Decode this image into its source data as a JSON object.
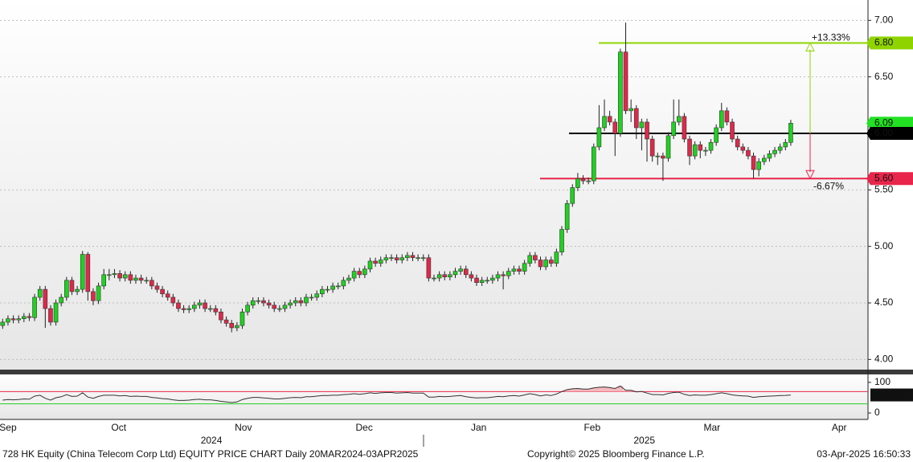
{
  "chart_data": {
    "type": "candlestick",
    "footer_left": "728 HK Equity (China Telecom Corp Ltd) EQUITY PRICE CHART  Daily 20MAR2024-03APR2025",
    "footer_center": "Copyright© 2025 Bloomberg Finance L.P.",
    "footer_right": "03-Apr-2025 16:50:33",
    "up_color": "#1fd21f",
    "down_color": "#e0284a",
    "x": [
      0,
      1,
      2,
      3,
      4,
      5,
      6,
      7,
      8,
      9,
      10,
      11,
      12,
      13,
      14,
      15,
      16,
      17,
      18,
      19,
      20,
      21,
      22,
      23,
      24,
      25,
      26,
      27,
      28,
      29,
      30,
      31,
      32,
      33,
      34,
      35,
      36,
      37,
      38,
      39,
      40,
      41,
      42,
      43,
      44,
      45,
      46,
      47,
      48,
      49,
      50,
      51,
      52,
      53,
      54,
      55,
      56,
      57,
      58,
      59,
      60,
      61,
      62,
      63,
      64,
      65,
      66,
      67,
      68,
      69,
      70,
      71,
      72,
      73,
      74,
      75,
      76,
      77,
      78,
      79,
      80,
      81,
      82,
      83,
      84,
      85,
      86,
      87,
      88,
      89,
      90,
      91,
      92,
      93,
      94,
      95,
      96,
      97,
      98,
      99,
      100,
      101,
      102,
      103,
      104,
      105,
      106,
      107,
      108,
      109,
      110,
      111,
      112,
      113,
      114,
      115,
      116,
      117,
      118,
      119,
      120,
      121,
      122,
      123,
      124,
      125,
      126,
      127,
      128,
      129,
      130,
      131,
      132,
      133,
      134,
      135,
      136,
      137,
      138,
      139,
      140,
      141,
      142,
      143,
      144,
      145,
      146,
      147,
      148
    ],
    "open": [
      4.3,
      4.33,
      4.36,
      4.35,
      4.36,
      4.38,
      4.37,
      4.55,
      4.62,
      4.45,
      4.33,
      4.5,
      4.55,
      4.7,
      4.6,
      4.62,
      4.93,
      4.6,
      4.52,
      4.65,
      4.75,
      4.75,
      4.76,
      4.72,
      4.75,
      4.7,
      4.72,
      4.7,
      4.7,
      4.65,
      4.62,
      4.58,
      4.55,
      4.5,
      4.45,
      4.44,
      4.45,
      4.48,
      4.5,
      4.45,
      4.45,
      4.42,
      4.35,
      4.32,
      4.28,
      4.3,
      4.42,
      4.48,
      4.52,
      4.52,
      4.5,
      4.48,
      4.45,
      4.45,
      4.48,
      4.5,
      4.52,
      4.5,
      4.55,
      4.55,
      4.58,
      4.62,
      4.62,
      4.65,
      4.65,
      4.7,
      4.72,
      4.78,
      4.75,
      4.8,
      4.87,
      4.85,
      4.88,
      4.9,
      4.9,
      4.88,
      4.9,
      4.92,
      4.9,
      4.9,
      4.9,
      4.72,
      4.72,
      4.75,
      4.73,
      4.75,
      4.78,
      4.8,
      4.75,
      4.72,
      4.68,
      4.7,
      4.7,
      4.72,
      4.75,
      4.74,
      4.78,
      4.8,
      4.78,
      4.85,
      4.92,
      4.88,
      4.82,
      4.88,
      4.85,
      4.95,
      5.15,
      5.38,
      5.52,
      5.6,
      5.58,
      5.58,
      5.88,
      6.05,
      6.15,
      6.1,
      6.0,
      6.72,
      6.2,
      6.22,
      6.05,
      6.1,
      5.95,
      5.8,
      5.8,
      5.78,
      5.98,
      6.1,
      6.15,
      5.95,
      5.8,
      5.9,
      5.85,
      5.85,
      5.92,
      6.05,
      6.2,
      6.1,
      5.95,
      5.88,
      5.85,
      5.8,
      5.68,
      5.75,
      5.78,
      5.82,
      5.85,
      5.88,
      5.92
    ],
    "high": [
      4.36,
      4.39,
      4.39,
      4.39,
      4.41,
      4.41,
      4.58,
      4.65,
      4.65,
      4.48,
      4.53,
      4.58,
      4.73,
      4.73,
      4.65,
      4.96,
      4.95,
      4.63,
      4.68,
      4.8,
      4.8,
      4.8,
      4.79,
      4.78,
      4.78,
      4.75,
      4.75,
      4.73,
      4.73,
      4.68,
      4.65,
      4.61,
      4.58,
      4.53,
      4.48,
      4.48,
      4.51,
      4.53,
      4.53,
      4.48,
      4.48,
      4.45,
      4.38,
      4.35,
      4.33,
      4.45,
      4.51,
      4.55,
      4.55,
      4.55,
      4.53,
      4.51,
      4.48,
      4.51,
      4.53,
      4.55,
      4.55,
      4.58,
      4.58,
      4.61,
      4.65,
      4.65,
      4.68,
      4.68,
      4.73,
      4.75,
      4.81,
      4.81,
      4.83,
      4.9,
      4.9,
      4.91,
      4.93,
      4.93,
      4.93,
      4.93,
      4.95,
      4.95,
      4.93,
      4.93,
      4.93,
      4.75,
      4.78,
      4.78,
      4.78,
      4.81,
      4.83,
      4.83,
      4.78,
      4.75,
      4.73,
      4.73,
      4.75,
      4.78,
      4.78,
      4.81,
      4.83,
      4.83,
      4.88,
      4.95,
      4.95,
      4.91,
      4.91,
      4.91,
      4.98,
      5.18,
      5.41,
      5.55,
      5.65,
      5.63,
      5.61,
      5.91,
      6.25,
      6.3,
      6.2,
      6.13,
      6.75,
      6.98,
      6.3,
      6.25,
      6.13,
      6.13,
      5.98,
      5.83,
      5.83,
      6.01,
      6.3,
      6.3,
      6.18,
      5.98,
      5.93,
      5.93,
      5.88,
      5.95,
      6.08,
      6.27,
      6.23,
      6.13,
      5.98,
      5.91,
      5.88,
      5.83,
      5.78,
      5.81,
      5.85,
      5.88,
      5.91,
      5.95,
      6.12
    ],
    "low": [
      4.27,
      4.3,
      4.32,
      4.32,
      4.33,
      4.34,
      4.34,
      4.52,
      4.28,
      4.3,
      4.3,
      4.47,
      4.52,
      4.57,
      4.57,
      4.59,
      4.52,
      4.48,
      4.49,
      4.62,
      4.7,
      4.72,
      4.69,
      4.69,
      4.67,
      4.67,
      4.67,
      4.67,
      4.62,
      4.59,
      4.55,
      4.52,
      4.47,
      4.42,
      4.41,
      4.41,
      4.42,
      4.45,
      4.42,
      4.42,
      4.39,
      4.32,
      4.29,
      4.24,
      4.25,
      4.27,
      4.39,
      4.45,
      4.49,
      4.47,
      4.45,
      4.42,
      4.42,
      4.42,
      4.45,
      4.47,
      4.47,
      4.47,
      4.52,
      4.52,
      4.55,
      4.59,
      4.59,
      4.62,
      4.62,
      4.67,
      4.69,
      4.72,
      4.72,
      4.77,
      4.82,
      4.82,
      4.85,
      4.87,
      4.85,
      4.85,
      4.87,
      4.87,
      4.87,
      4.87,
      4.69,
      4.69,
      4.69,
      4.7,
      4.7,
      4.72,
      4.75,
      4.72,
      4.69,
      4.65,
      4.65,
      4.67,
      4.67,
      4.69,
      4.62,
      4.71,
      4.75,
      4.75,
      4.75,
      4.82,
      4.85,
      4.79,
      4.79,
      4.82,
      4.82,
      4.92,
      5.12,
      5.35,
      5.49,
      5.55,
      5.55,
      5.55,
      5.85,
      6.02,
      6.07,
      5.8,
      5.97,
      6.17,
      6.1,
      5.95,
      5.85,
      5.75,
      5.75,
      5.72,
      5.58,
      5.75,
      5.95,
      6.07,
      5.92,
      5.72,
      5.77,
      5.78,
      5.8,
      5.82,
      5.89,
      6.02,
      6.07,
      5.92,
      5.85,
      5.82,
      5.77,
      5.6,
      5.62,
      5.72,
      5.75,
      5.79,
      5.82,
      5.85,
      5.89
    ],
    "close": [
      4.33,
      4.36,
      4.35,
      4.36,
      4.38,
      4.37,
      4.55,
      4.62,
      4.45,
      4.33,
      4.5,
      4.55,
      4.7,
      4.6,
      4.62,
      4.93,
      4.6,
      4.52,
      4.65,
      4.75,
      4.75,
      4.76,
      4.72,
      4.75,
      4.7,
      4.72,
      4.7,
      4.7,
      4.65,
      4.62,
      4.58,
      4.55,
      4.5,
      4.45,
      4.44,
      4.45,
      4.48,
      4.5,
      4.45,
      4.45,
      4.42,
      4.35,
      4.32,
      4.28,
      4.3,
      4.42,
      4.48,
      4.52,
      4.52,
      4.5,
      4.48,
      4.45,
      4.45,
      4.48,
      4.5,
      4.52,
      4.5,
      4.55,
      4.55,
      4.58,
      4.62,
      4.62,
      4.65,
      4.65,
      4.7,
      4.72,
      4.78,
      4.75,
      4.8,
      4.87,
      4.85,
      4.88,
      4.9,
      4.9,
      4.88,
      4.9,
      4.92,
      4.9,
      4.9,
      4.9,
      4.72,
      4.72,
      4.75,
      4.73,
      4.75,
      4.78,
      4.8,
      4.75,
      4.72,
      4.68,
      4.7,
      4.7,
      4.72,
      4.75,
      4.74,
      4.78,
      4.8,
      4.78,
      4.85,
      4.92,
      4.88,
      4.82,
      4.88,
      4.85,
      4.95,
      5.15,
      5.38,
      5.52,
      5.6,
      5.58,
      5.58,
      5.88,
      6.05,
      6.15,
      6.1,
      6.0,
      6.72,
      6.2,
      6.22,
      6.05,
      6.1,
      5.95,
      5.8,
      5.8,
      5.78,
      5.98,
      6.1,
      6.15,
      5.95,
      5.8,
      5.9,
      5.85,
      5.85,
      5.92,
      6.05,
      6.2,
      6.1,
      5.95,
      5.88,
      5.85,
      5.8,
      5.68,
      5.75,
      5.78,
      5.82,
      5.85,
      5.88,
      5.92,
      6.09
    ],
    "last_price": {
      "value": 6.09,
      "label": "6.09",
      "color": "#22e022"
    },
    "xlim": [
      -0.5,
      162.5
    ],
    "xticks": [
      {
        "value": 1.0,
        "label": "Sep"
      },
      {
        "value": 21.8,
        "label": "Oct"
      },
      {
        "value": 45.2,
        "label": "Nov"
      },
      {
        "value": 67.9,
        "label": "Dec"
      },
      {
        "value": 89.4,
        "label": "Jan"
      },
      {
        "value": 110.7,
        "label": "Feb"
      },
      {
        "value": 133.2,
        "label": "Mar"
      },
      {
        "value": 157.1,
        "label": "Apr"
      }
    ],
    "year_ticks": [
      {
        "value": 39.2,
        "label": "2024"
      },
      {
        "value": 120.5,
        "label": "2025"
      }
    ],
    "ylim": [
      3.91,
      7.18
    ],
    "yticks": [
      {
        "value": 4.0,
        "label": "4.00"
      },
      {
        "value": 4.5,
        "label": "4.50"
      },
      {
        "value": 5.0,
        "label": "5.00"
      },
      {
        "value": 5.5,
        "label": "5.50"
      },
      {
        "value": 6.5,
        "label": "6.50"
      },
      {
        "value": 7.0,
        "label": "7.00"
      }
    ],
    "grid": true,
    "hlines": [
      {
        "value": 6.8,
        "label": "6.80",
        "color": "#8fd400",
        "box": "#8fd400"
      },
      {
        "value": 6.0,
        "label": "6.00",
        "color": "#000000",
        "box": "#000000"
      },
      {
        "value": 5.6,
        "label": "5.60",
        "color": "#e8254a",
        "box": "#e8254a"
      }
    ],
    "annotations": [
      {
        "text": "+13.33%",
        "color": "#8fd400"
      },
      {
        "text": "-6.67%",
        "color": "#e8254a"
      }
    ],
    "rsi": {
      "color": "#333333",
      "values": [
        42,
        44,
        43,
        44,
        46,
        45,
        55,
        58,
        48,
        42,
        50,
        53,
        60,
        54,
        55,
        66,
        52,
        48,
        54,
        58,
        58,
        58,
        56,
        57,
        54,
        55,
        54,
        54,
        51,
        49,
        47,
        46,
        43,
        41,
        41,
        42,
        44,
        45,
        43,
        43,
        41,
        38,
        36,
        34,
        36,
        44,
        48,
        51,
        51,
        49,
        48,
        46,
        46,
        48,
        50,
        51,
        50,
        53,
        53,
        55,
        57,
        57,
        58,
        58,
        60,
        61,
        63,
        61,
        63,
        66,
        64,
        66,
        67,
        67,
        65,
        66,
        67,
        65,
        65,
        65,
        52,
        52,
        54,
        53,
        54,
        56,
        57,
        53,
        51,
        49,
        50,
        50,
        52,
        54,
        53,
        56,
        57,
        55,
        59,
        63,
        60,
        56,
        59,
        57,
        62,
        70,
        76,
        79,
        80,
        78,
        78,
        82,
        84,
        85,
        83,
        80,
        88,
        74,
        74,
        69,
        70,
        65,
        60,
        60,
        59,
        64,
        67,
        68,
        61,
        57,
        59,
        58,
        58,
        60,
        63,
        66,
        63,
        59,
        57,
        56,
        55,
        51,
        53,
        54,
        55,
        56,
        57,
        57.5,
        58.9016
      ],
      "ylim": [
        -21,
        126
      ],
      "yticks": [
        0,
        100
      ],
      "levels": [
        {
          "value": 70,
          "color": "#e8254a"
        },
        {
          "value": 30,
          "color": "#22cc22"
        }
      ],
      "overbought_fill": "#f4b8bd"
    }
  }
}
